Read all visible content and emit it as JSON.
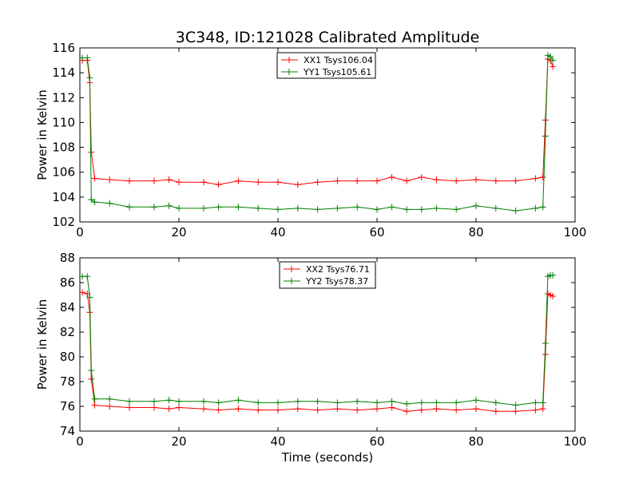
{
  "figure": {
    "title": "3C348, ID:121028 Calibrated Amplitude",
    "xlabel": "Time (seconds)"
  },
  "chart_data": [
    {
      "type": "line",
      "title": "3C348, ID:121028 Calibrated Amplitude",
      "xlabel": "",
      "ylabel": "Power in Kelvin",
      "xlim": [
        0,
        100
      ],
      "ylim": [
        102,
        116
      ],
      "xticks": [
        "0",
        "20",
        "40",
        "60",
        "80",
        "100"
      ],
      "yticks": [
        "102",
        "104",
        "106",
        "108",
        "110",
        "112",
        "114",
        "116"
      ],
      "marker": "+",
      "legend_position": "top-center",
      "series": [
        {
          "name": "XX1 Tsys106.04",
          "color": "#ff0000",
          "x": [
            0.5,
            1.5,
            2.0,
            2.3,
            3,
            6,
            10,
            15,
            18,
            20,
            25,
            28,
            32,
            36,
            40,
            44,
            48,
            52,
            56,
            60,
            63,
            66,
            69,
            72,
            76,
            80,
            84,
            88,
            92,
            93.5,
            94.0,
            94.5,
            95.0,
            95.5
          ],
          "y": [
            115.0,
            115.0,
            113.2,
            107.6,
            105.5,
            105.4,
            105.3,
            105.3,
            105.4,
            105.2,
            105.2,
            105.0,
            105.3,
            105.2,
            105.2,
            105.0,
            105.2,
            105.3,
            105.3,
            105.3,
            105.6,
            105.3,
            105.6,
            105.4,
            105.3,
            105.4,
            105.3,
            105.3,
            105.5,
            105.6,
            110.2,
            115.1,
            115.0,
            114.5
          ]
        },
        {
          "name": "YY1 Tsys105.61",
          "color": "#008000",
          "x": [
            0.5,
            1.5,
            2.0,
            2.3,
            3,
            6,
            10,
            15,
            18,
            20,
            25,
            28,
            32,
            36,
            40,
            44,
            48,
            52,
            56,
            60,
            63,
            66,
            69,
            72,
            76,
            80,
            84,
            88,
            92,
            93.5,
            94.0,
            94.5,
            95.0,
            95.5
          ],
          "y": [
            115.2,
            115.2,
            113.6,
            103.8,
            103.6,
            103.5,
            103.2,
            103.2,
            103.3,
            103.1,
            103.1,
            103.2,
            103.2,
            103.1,
            103.0,
            103.1,
            103.0,
            103.1,
            103.2,
            103.0,
            103.2,
            103.0,
            103.0,
            103.1,
            103.0,
            103.3,
            103.1,
            102.9,
            103.1,
            103.2,
            108.9,
            115.4,
            115.3,
            115.0
          ]
        }
      ]
    },
    {
      "type": "line",
      "title": "",
      "xlabel": "Time (seconds)",
      "ylabel": "Power in Kelvin",
      "xlim": [
        0,
        100
      ],
      "ylim": [
        74,
        88
      ],
      "xticks": [
        "0",
        "20",
        "40",
        "60",
        "80",
        "100"
      ],
      "yticks": [
        "74",
        "76",
        "78",
        "80",
        "82",
        "84",
        "86",
        "88"
      ],
      "marker": "+",
      "legend_position": "top-center",
      "series": [
        {
          "name": "XX2 Tsys76.71",
          "color": "#ff0000",
          "x": [
            0.5,
            1.5,
            2.0,
            2.3,
            3,
            6,
            10,
            15,
            18,
            20,
            25,
            28,
            32,
            36,
            40,
            44,
            48,
            52,
            56,
            60,
            63,
            66,
            69,
            72,
            76,
            80,
            84,
            88,
            92,
            93.5,
            94.0,
            94.5,
            95.0,
            95.5
          ],
          "y": [
            85.2,
            85.1,
            83.6,
            78.2,
            76.1,
            76.0,
            75.9,
            75.9,
            75.8,
            75.9,
            75.8,
            75.7,
            75.8,
            75.7,
            75.7,
            75.8,
            75.7,
            75.8,
            75.7,
            75.8,
            75.9,
            75.6,
            75.7,
            75.8,
            75.7,
            75.8,
            75.6,
            75.6,
            75.7,
            75.8,
            80.2,
            85.1,
            85.0,
            84.9
          ]
        },
        {
          "name": "YY2 Tsys78.37",
          "color": "#008000",
          "x": [
            0.5,
            1.5,
            2.0,
            2.3,
            3,
            6,
            10,
            15,
            18,
            20,
            25,
            28,
            32,
            36,
            40,
            44,
            48,
            52,
            56,
            60,
            63,
            66,
            69,
            72,
            76,
            80,
            84,
            88,
            92,
            93.5,
            94.0,
            94.5,
            95.0,
            95.5
          ],
          "y": [
            86.5,
            86.5,
            84.8,
            78.9,
            76.6,
            76.6,
            76.4,
            76.4,
            76.5,
            76.4,
            76.4,
            76.3,
            76.5,
            76.3,
            76.3,
            76.4,
            76.4,
            76.3,
            76.4,
            76.3,
            76.4,
            76.2,
            76.3,
            76.3,
            76.3,
            76.5,
            76.3,
            76.1,
            76.3,
            76.3,
            81.1,
            86.5,
            86.6,
            86.6
          ]
        }
      ]
    }
  ]
}
